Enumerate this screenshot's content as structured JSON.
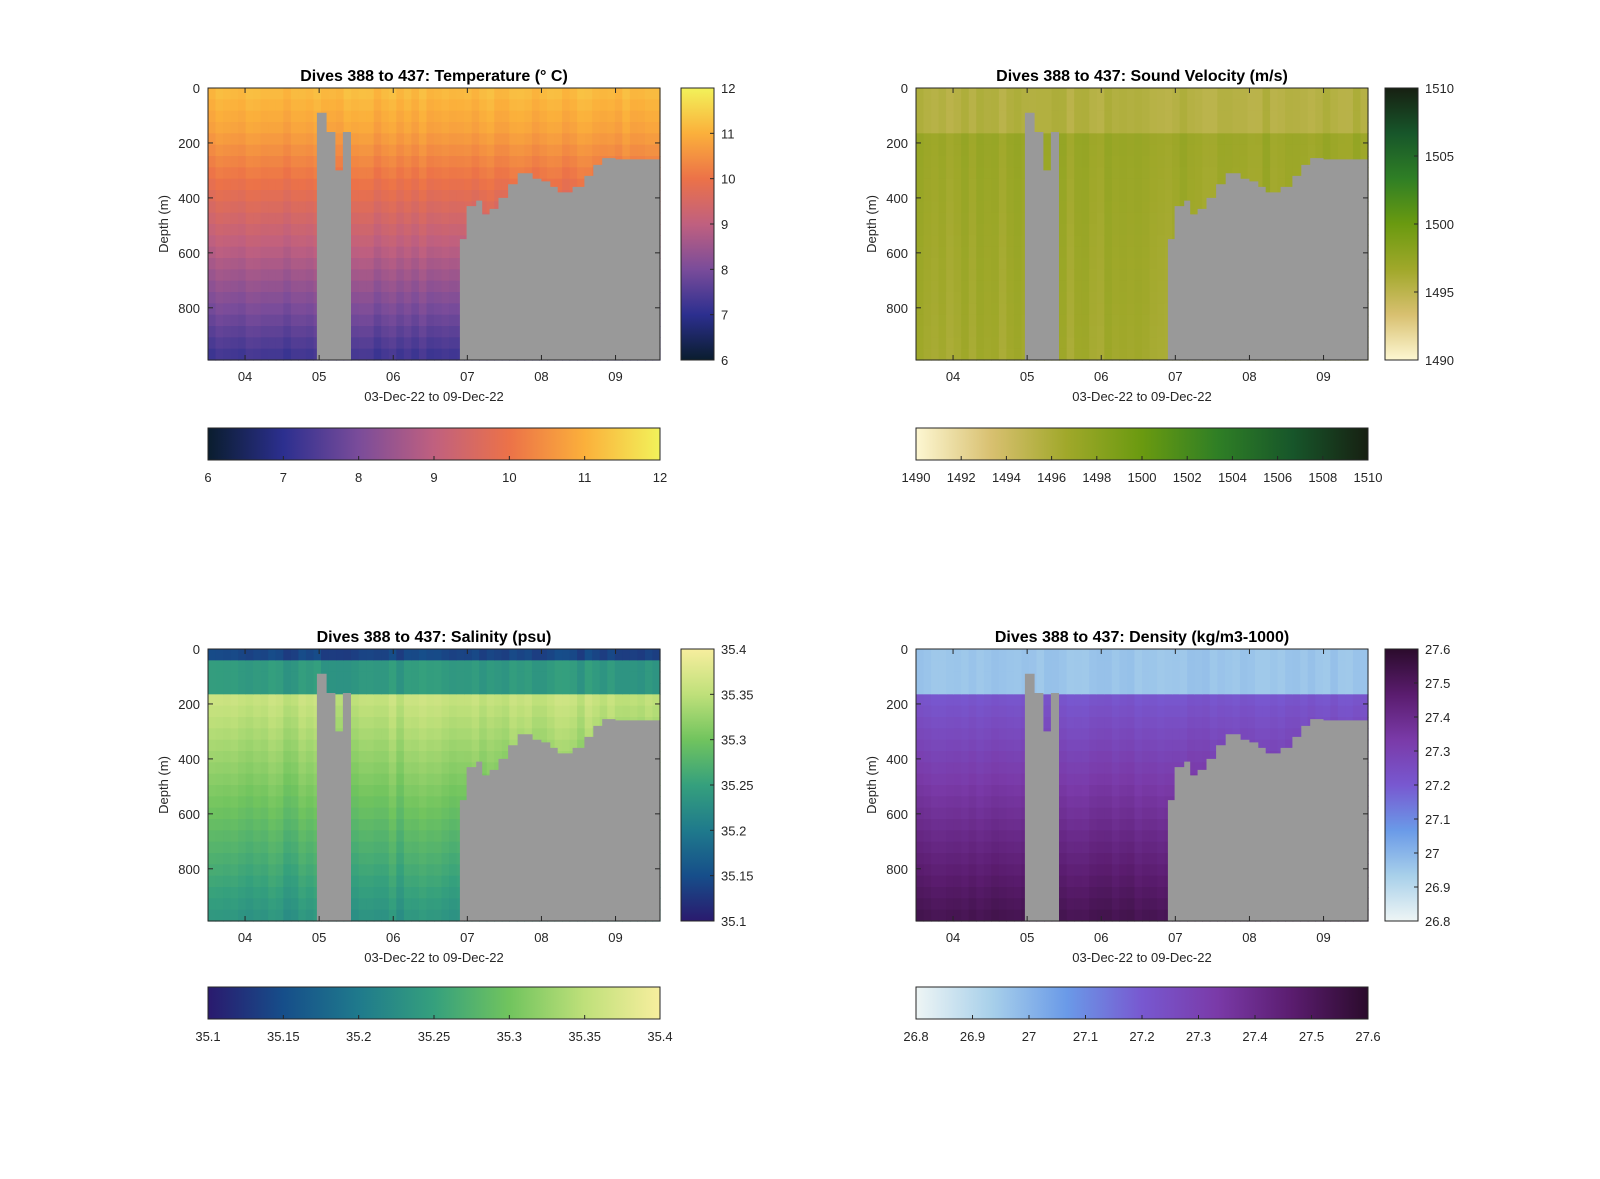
{
  "figure": {
    "background": "#ffffff",
    "mask_color": "#999999"
  },
  "chart_data": [
    {
      "type": "heatmap",
      "title": "Dives 388 to 437: Temperature (° C)",
      "xlabel": "03-Dec-22 to 09-Dec-22",
      "ylabel": "Depth (m)",
      "x_tick_labels": [
        "04",
        "05",
        "06",
        "07",
        "08",
        "09"
      ],
      "x_ticks_days": [
        4,
        5,
        6,
        7,
        8,
        9
      ],
      "xlim_days": [
        3.5,
        9.6
      ],
      "y_tick_labels": [
        "0",
        "200",
        "400",
        "600",
        "800"
      ],
      "y_ticks": [
        0,
        200,
        400,
        600,
        800
      ],
      "ylim": [
        0,
        990
      ],
      "ylim_reversed": true,
      "clim": [
        6,
        12
      ],
      "colorbar_ticks": [
        "6",
        "7",
        "8",
        "9",
        "10",
        "11",
        "12"
      ],
      "colorbar_tick_values": [
        6,
        7,
        8,
        9,
        10,
        11,
        12
      ],
      "colormap": [
        "#0a1d2e",
        "#2c2f8f",
        "#7a4c9a",
        "#c0607f",
        "#ec7248",
        "#fbb03b",
        "#f2f25a"
      ],
      "colorbar_locations": [
        "right",
        "bottom"
      ],
      "upper_layer_depth": 150,
      "surface_value": 11.2,
      "deep_value": 7.0
    },
    {
      "type": "heatmap",
      "title": "Dives 388 to 437: Sound Velocity (m/s)",
      "xlabel": "03-Dec-22 to 09-Dec-22",
      "ylabel": "Depth (m)",
      "x_tick_labels": [
        "04",
        "05",
        "06",
        "07",
        "08",
        "09"
      ],
      "x_ticks_days": [
        4,
        5,
        6,
        7,
        8,
        9
      ],
      "xlim_days": [
        3.5,
        9.6
      ],
      "y_tick_labels": [
        "0",
        "200",
        "400",
        "600",
        "800"
      ],
      "y_ticks": [
        0,
        200,
        400,
        600,
        800
      ],
      "ylim": [
        0,
        990
      ],
      "ylim_reversed": true,
      "clim": [
        1490,
        1510
      ],
      "colorbar_ticks": [
        "1490",
        "1495",
        "1500",
        "1505",
        "1510"
      ],
      "colorbar_tick_values": [
        1490,
        1495,
        1500,
        1505,
        1510
      ],
      "colorbar_ticks_bottom": [
        "1490",
        "1492",
        "1494",
        "1496",
        "1498",
        "1500",
        "1502",
        "1504",
        "1506",
        "1508",
        "1510"
      ],
      "colorbar_tick_values_bottom": [
        1490,
        1492,
        1494,
        1496,
        1498,
        1500,
        1502,
        1504,
        1506,
        1508,
        1510
      ],
      "colormap": [
        "#fdf7d2",
        "#d8c070",
        "#a0a82a",
        "#6a9a10",
        "#2f7f25",
        "#17562a",
        "#172012"
      ],
      "colorbar_locations": [
        "right",
        "bottom"
      ],
      "upper_layer_depth": 150,
      "surface_value": 1495.5,
      "deep_value": 1497.0
    },
    {
      "type": "heatmap",
      "title": "Dives 388 to 437: Salinity (psu)",
      "xlabel": "03-Dec-22 to 09-Dec-22",
      "ylabel": "Depth (m)",
      "x_tick_labels": [
        "04",
        "05",
        "06",
        "07",
        "08",
        "09"
      ],
      "x_ticks_days": [
        4,
        5,
        6,
        7,
        8,
        9
      ],
      "xlim_days": [
        3.5,
        9.6
      ],
      "y_tick_labels": [
        "0",
        "200",
        "400",
        "600",
        "800"
      ],
      "y_ticks": [
        0,
        200,
        400,
        600,
        800
      ],
      "ylim": [
        0,
        990
      ],
      "ylim_reversed": true,
      "clim": [
        35.1,
        35.4
      ],
      "colorbar_ticks": [
        "35.1",
        "35.15",
        "35.2",
        "35.25",
        "35.3",
        "35.35",
        "35.4"
      ],
      "colorbar_tick_values": [
        35.1,
        35.15,
        35.2,
        35.25,
        35.3,
        35.35,
        35.4
      ],
      "colormap": [
        "#2a1a6e",
        "#164e8a",
        "#1f7a8c",
        "#35a07d",
        "#71c45e",
        "#bfe07a",
        "#f7ee9e"
      ],
      "colorbar_locations": [
        "right",
        "bottom"
      ],
      "upper_layer_depth": 150,
      "surface_value": 35.24,
      "deep_value": 35.25
    },
    {
      "type": "heatmap",
      "title": "Dives 388 to 437: Density (kg/m3-1000)",
      "xlabel": "03-Dec-22 to 09-Dec-22",
      "ylabel": "Depth (m)",
      "x_tick_labels": [
        "04",
        "05",
        "06",
        "07",
        "08",
        "09"
      ],
      "x_ticks_days": [
        4,
        5,
        6,
        7,
        8,
        9
      ],
      "xlim_days": [
        3.5,
        9.6
      ],
      "y_tick_labels": [
        "0",
        "200",
        "400",
        "600",
        "800"
      ],
      "y_ticks": [
        0,
        200,
        400,
        600,
        800
      ],
      "ylim": [
        0,
        990
      ],
      "ylim_reversed": true,
      "clim": [
        26.8,
        27.6
      ],
      "colorbar_ticks": [
        "26.8",
        "26.9",
        "27",
        "27.1",
        "27.2",
        "27.3",
        "27.4",
        "27.5",
        "27.6"
      ],
      "colorbar_tick_values": [
        26.8,
        26.9,
        27.0,
        27.1,
        27.2,
        27.3,
        27.4,
        27.5,
        27.6
      ],
      "colormap": [
        "#eef5f5",
        "#a8d0ea",
        "#6a9ae8",
        "#7858d0",
        "#7a3aa8",
        "#5a1c6e",
        "#2b0b2c"
      ],
      "colorbar_locations": [
        "right",
        "bottom"
      ],
      "upper_layer_depth": 150,
      "surface_value": 26.96,
      "deep_value": 27.45
    }
  ]
}
